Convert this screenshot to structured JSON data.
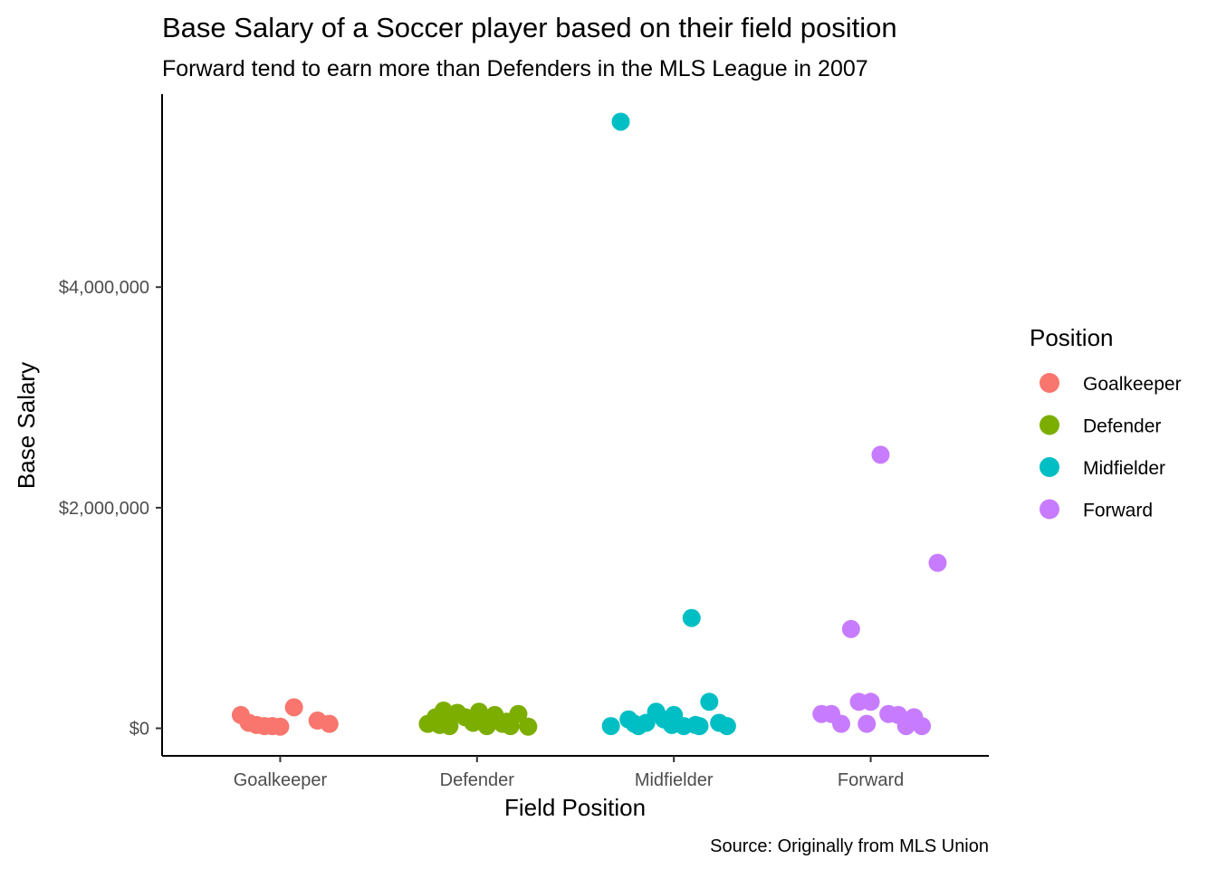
{
  "chart_data": {
    "type": "scatter",
    "title": "Base Salary of a Soccer player based on their field position",
    "subtitle": "Forward tend to earn more than Defenders in the MLS League in 2007",
    "xlabel": "Field Position",
    "ylabel": "Base Salary",
    "caption": "Source: Originally from MLS Union",
    "categories": [
      "Goalkeeper",
      "Defender",
      "Midfielder",
      "Forward"
    ],
    "ylim": [
      -250000,
      5750000
    ],
    "y_ticks": [
      0,
      2000000,
      4000000
    ],
    "y_tick_labels": [
      "$0",
      "$2,000,000",
      "$4,000,000"
    ],
    "jitter": true,
    "grid": false,
    "legend": {
      "title": "Position",
      "placement": "right"
    },
    "series": [
      {
        "name": "Goalkeeper",
        "color": "#F8766D",
        "x": [
          0.8,
          0.84,
          0.88,
          0.92,
          0.96,
          1.0,
          1.07,
          1.19,
          1.25
        ],
        "values": [
          120000,
          50000,
          30000,
          20000,
          20000,
          15000,
          190000,
          70000,
          40000
        ]
      },
      {
        "name": "Defender",
        "color": "#7CAE00",
        "x": [
          1.75,
          1.79,
          1.83,
          1.86,
          1.9,
          1.94,
          1.98,
          2.01,
          2.05,
          2.09,
          2.13,
          2.17,
          2.21,
          2.26
        ],
        "values": [
          40000,
          100000,
          160000,
          20000,
          140000,
          100000,
          50000,
          150000,
          20000,
          120000,
          40000,
          20000,
          130000,
          15000
        ],
        "x_extra": [
          1.81,
          2.15
        ],
        "values_extra": [
          30000,
          60000
        ]
      },
      {
        "name": "Midfielder",
        "color": "#00BFC4",
        "x": [
          2.68,
          2.73,
          2.77,
          2.82,
          2.86,
          2.91,
          2.95,
          3.0,
          3.05,
          3.09,
          3.13,
          3.18,
          3.23,
          3.27,
          2.8,
          2.99,
          3.11
        ],
        "values": [
          20000,
          5500000,
          80000,
          20000,
          50000,
          150000,
          80000,
          120000,
          20000,
          1000000,
          20000,
          240000,
          50000,
          20000,
          40000,
          30000,
          30000
        ]
      },
      {
        "name": "Forward",
        "color": "#C77CFF",
        "x": [
          3.75,
          3.8,
          3.85,
          3.9,
          3.94,
          3.98,
          4.0,
          4.05,
          4.09,
          4.14,
          4.18,
          4.22,
          4.26,
          4.34
        ],
        "values": [
          130000,
          130000,
          40000,
          900000,
          240000,
          40000,
          240000,
          2480000,
          130000,
          120000,
          20000,
          100000,
          20000,
          1500000
        ]
      }
    ]
  }
}
